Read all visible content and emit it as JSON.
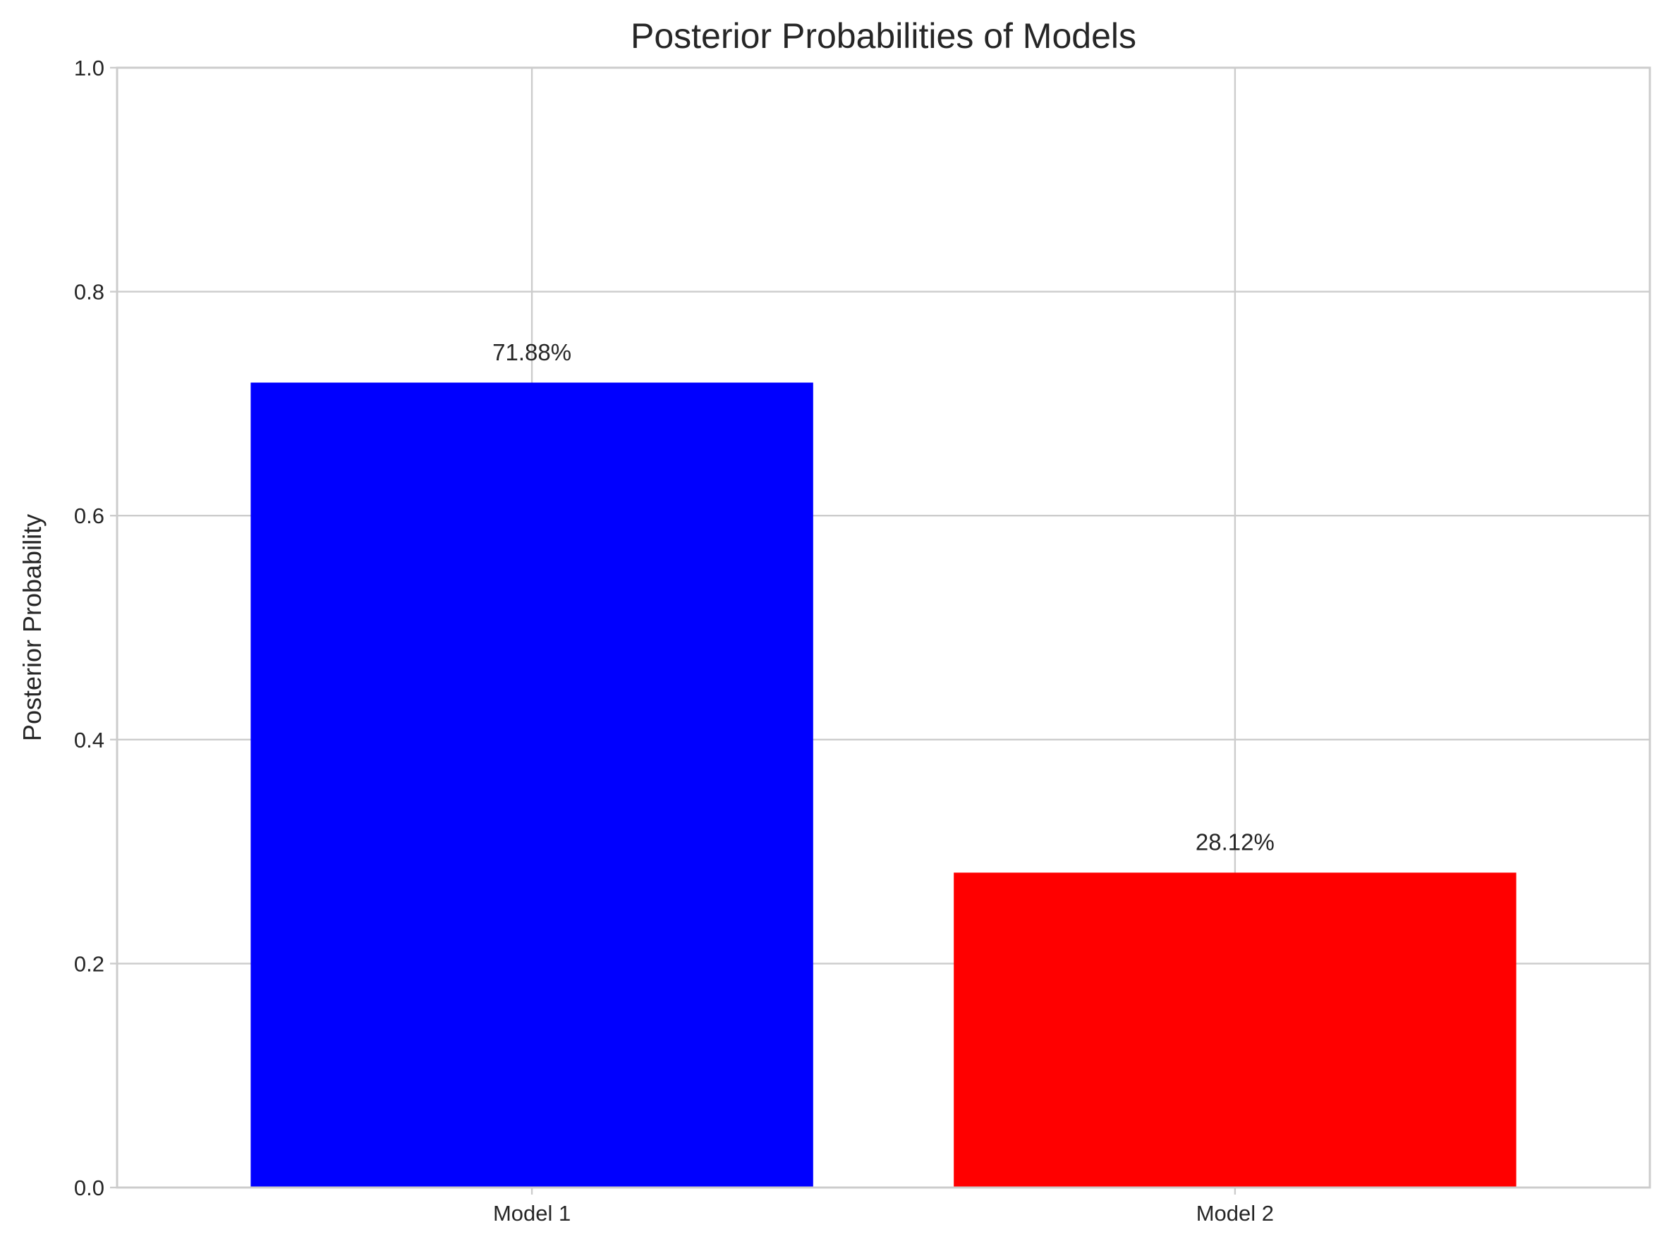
{
  "chart_data": {
    "type": "bar",
    "title": "Posterior Probabilities of Models",
    "xlabel": "",
    "ylabel": "Posterior Probability",
    "categories": [
      "Model 1",
      "Model 2"
    ],
    "values": [
      0.7188,
      0.2812
    ],
    "data_labels": [
      "71.88%",
      "28.12%"
    ],
    "colors": [
      "#0000ff",
      "#ff0000"
    ],
    "ylim": [
      0,
      1.0
    ],
    "yticks": [
      0.0,
      0.2,
      0.4,
      0.6,
      0.8,
      1.0
    ],
    "ytick_labels": [
      "0.0",
      "0.2",
      "0.4",
      "0.6",
      "0.8",
      "1.0"
    ],
    "grid": true,
    "legend": "none"
  }
}
